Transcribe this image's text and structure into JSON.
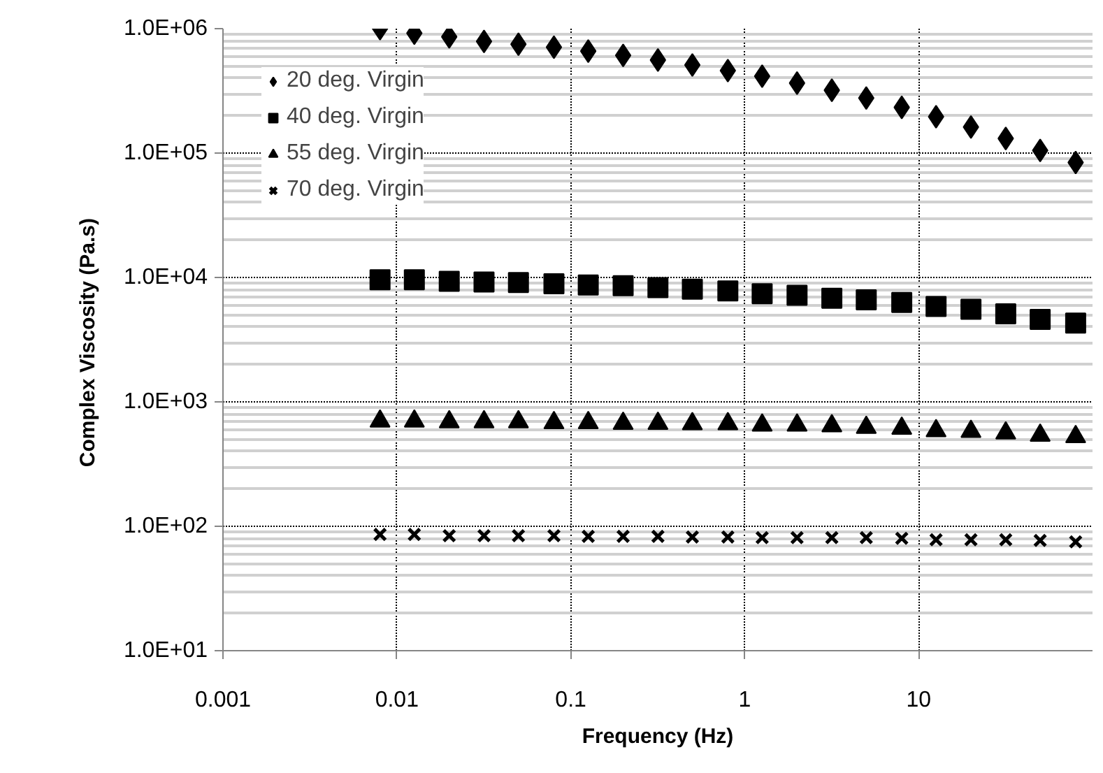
{
  "chart_data": {
    "type": "scatter",
    "xlabel": "Frequency (Hz)",
    "ylabel": "Complex Viscosity  (Pa.s)",
    "log": "xy",
    "grid": true,
    "legend": "top left",
    "xlim": [
      0.001,
      100
    ],
    "xticks": [
      0.001,
      0.01,
      0.1,
      1,
      10
    ],
    "ylim": [
      10,
      1000000
    ],
    "yticks": [
      {
        "value": 10,
        "label": "1.0E+01"
      },
      {
        "value": 100,
        "label": "1.0E+02"
      },
      {
        "value": 1000,
        "label": "1.0E+03"
      },
      {
        "value": 10000,
        "label": "1.0E+04"
      },
      {
        "value": 100000,
        "label": "1.0E+05"
      },
      {
        "value": 1000000,
        "label": "1.0E+06"
      }
    ],
    "x": [
      0.008,
      0.0126,
      0.02,
      0.0317,
      0.05,
      0.08,
      0.126,
      0.2,
      0.317,
      0.5,
      0.8,
      1.26,
      2,
      3.17,
      5,
      8,
      12.6,
      20,
      31.7,
      50,
      80
    ],
    "series": [
      {
        "name": "20 deg. Virgin",
        "color": "#000000",
        "marker": "diamond",
        "values": [
          1000000,
          920000,
          860000,
          790000,
          750000,
          710000,
          660000,
          610000,
          560000,
          510000,
          460000,
          415000,
          365000,
          320000,
          277000,
          233000,
          196000,
          162000,
          131000,
          105000,
          84000
        ]
      },
      {
        "name": "40 deg. Virgin",
        "color": "#000000",
        "marker": "square",
        "values": [
          9600,
          9600,
          9300,
          9200,
          9100,
          8900,
          8700,
          8600,
          8300,
          8050,
          7800,
          7400,
          7200,
          6800,
          6600,
          6300,
          5850,
          5550,
          5100,
          4600,
          4300
        ]
      },
      {
        "name": "55 deg. Virgin",
        "color": "#000000",
        "marker": "triangle",
        "values": [
          700,
          700,
          690,
          690,
          690,
          680,
          680,
          670,
          670,
          667,
          667,
          650,
          650,
          640,
          622,
          612,
          586,
          577,
          562,
          538,
          524
        ]
      },
      {
        "name": "70 deg. Virgin",
        "color": "#000000",
        "marker": "cross",
        "values": [
          86,
          86,
          84,
          84,
          84,
          84,
          83,
          83,
          83,
          82,
          82,
          81,
          81,
          81,
          81,
          80,
          78,
          78,
          78,
          77,
          75
        ]
      }
    ]
  }
}
